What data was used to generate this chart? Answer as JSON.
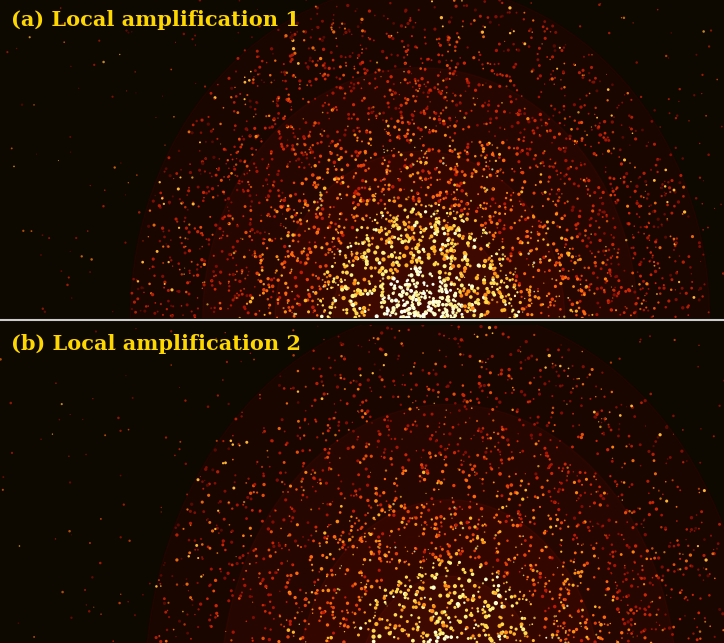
{
  "fig_width": 7.24,
  "fig_height": 6.43,
  "dpi": 100,
  "bg_color": "#0d0800",
  "label_color": "#FFD700",
  "label_a": "(a) Local amplification 1",
  "label_b": "(b) Local amplification 2",
  "label_fontsize": 15,
  "panel_bg": "#0d0800",
  "seed_a": 42,
  "seed_b": 137,
  "n_sparks_a": 4000,
  "n_sparks_b": 3500,
  "divider_color": "#cccccc"
}
